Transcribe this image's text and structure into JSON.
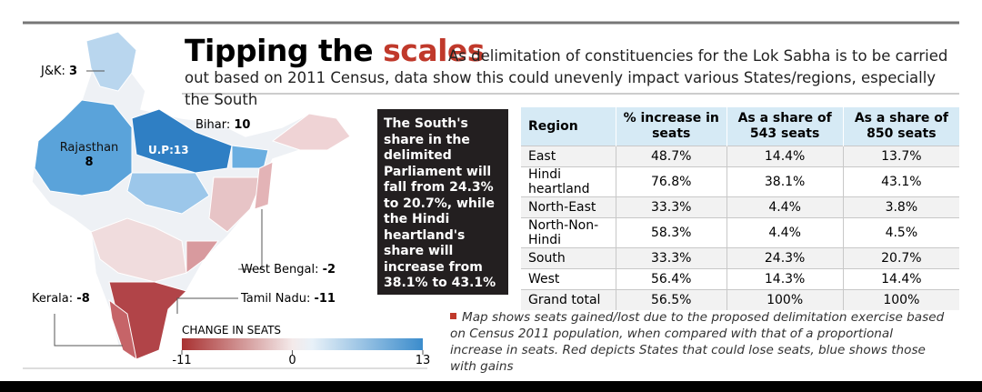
{
  "header": {
    "title": "Tipping the",
    "title_highlight": "scales",
    "subtitle": "As delimitation of constituencies for the Lok Sabha is to be carried out based on 2011 Census, data show this could unevenly impact various States/regions, especially the South"
  },
  "map": {
    "labels": [
      {
        "name": "J&K:",
        "value": 3
      },
      {
        "name": "Bihar:",
        "value": 10
      },
      {
        "name": "Rajasthan",
        "value": 8
      },
      {
        "name": "U.P:",
        "value": 13
      },
      {
        "name": "West Bengal:",
        "value": -2
      },
      {
        "name": "Kerala:",
        "value": -8
      },
      {
        "name": "Tamil Nadu:",
        "value": -11
      }
    ],
    "legend": {
      "title": "CHANGE IN SEATS",
      "min": -11,
      "mid": 0,
      "max": 13
    }
  },
  "callout": "The South's share in the delimited Parliament will fall from 24.3% to 20.7%, while the Hindi heartland's share will increase from 38.1% to 43.1%",
  "table": {
    "header": [
      "Region",
      "% increase in seats",
      "As a share of 543 seats",
      "As a share of 850 seats"
    ],
    "rows": [
      [
        "East",
        "48.7%",
        "14.4%",
        "13.7%"
      ],
      [
        "Hindi heartland",
        "76.8%",
        "38.1%",
        "43.1%"
      ],
      [
        "North-East",
        "33.3%",
        "4.4%",
        "3.8%"
      ],
      [
        "North-Non-Hindi",
        "58.3%",
        "4.4%",
        "4.5%"
      ],
      [
        "South",
        "33.3%",
        "24.3%",
        "20.7%"
      ],
      [
        "West",
        "56.4%",
        "14.3%",
        "14.4%"
      ],
      [
        "Grand total",
        "56.5%",
        "100%",
        "100%"
      ]
    ]
  },
  "note": "Map shows seats gained/lost due to the proposed delimitation exercise based on Census 2011 population, when compared with that of a proportional increase in seats. Red depicts States that could lose seats, blue shows those with gains"
}
